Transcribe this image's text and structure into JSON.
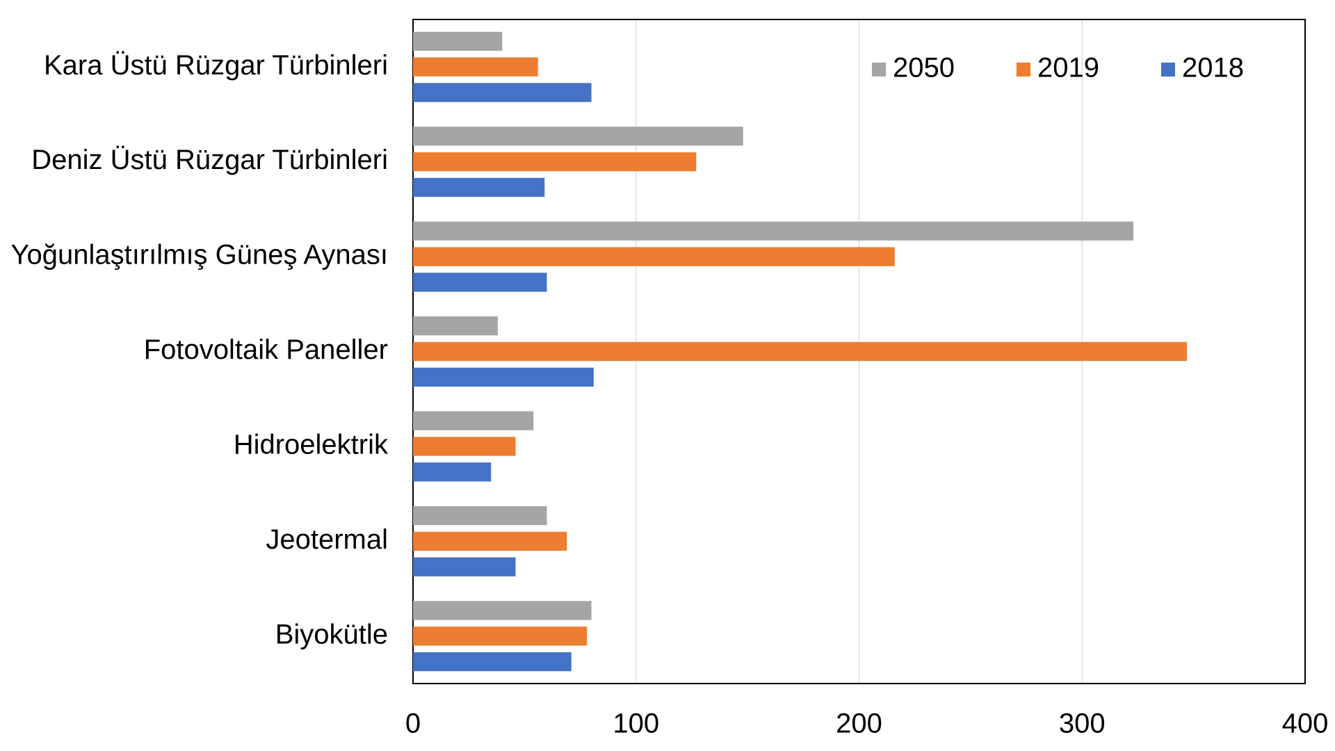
{
  "chart_data": {
    "type": "barh",
    "categories": [
      "Kara Üstü Rüzgar Türbinleri",
      "Deniz Üstü Rüzgar Türbinleri",
      "Yoğunlaştırılmış Güneş Aynası",
      "Fotovoltaik Paneller",
      "Hidroelektrik",
      "Jeotermal",
      "Biyokütle"
    ],
    "series": [
      {
        "name": "2050",
        "color": "#a5a5a5",
        "values": [
          40,
          148,
          323,
          38,
          54,
          60,
          80
        ]
      },
      {
        "name": "2019",
        "color": "#ed7d31",
        "values": [
          56,
          127,
          216,
          347,
          46,
          69,
          78
        ]
      },
      {
        "name": "2018",
        "color": "#4472c4",
        "values": [
          80,
          59,
          60,
          81,
          35,
          46,
          71
        ]
      }
    ],
    "xlim": [
      0,
      400
    ],
    "xticks": [
      0,
      100,
      200,
      300,
      400
    ],
    "grid": true,
    "legend": "upper right"
  }
}
